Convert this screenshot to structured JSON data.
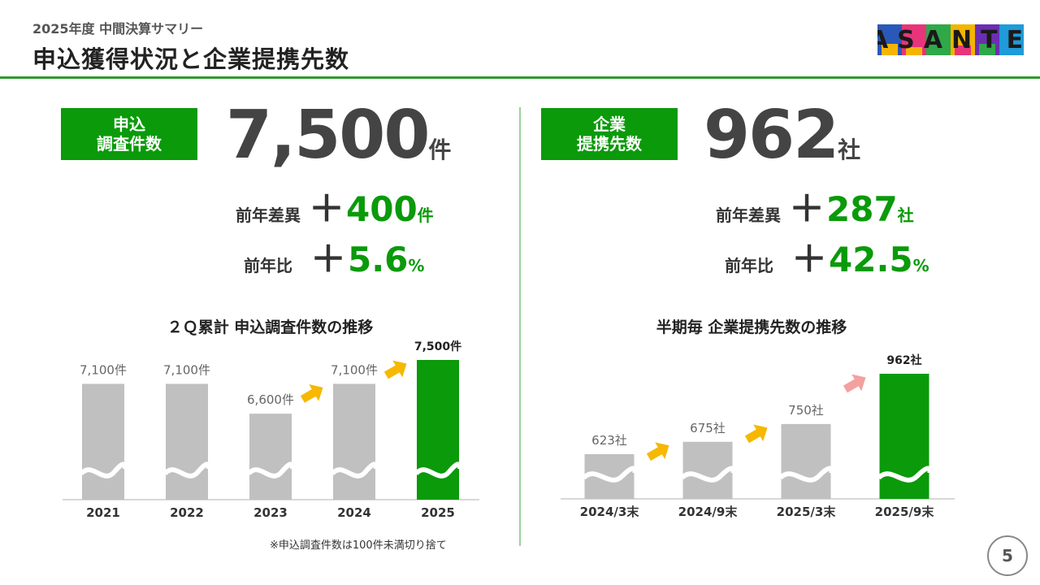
{
  "header": {
    "subtitle": "2025年度 中間決算サマリー",
    "title": "申込獲得状況と企業提携先数",
    "logo_text": "ASANTE",
    "rule_color": "#2e9b2e"
  },
  "left_kpi": {
    "badge_line1": "申込",
    "badge_line2": "調査件数",
    "value": "7,500",
    "unit": "件",
    "diff_label": "前年差異",
    "diff_sign": "＋",
    "diff_value": "400",
    "diff_unit": "件",
    "ratio_label": "前年比",
    "ratio_sign": "＋",
    "ratio_value": "5.6",
    "ratio_unit": "%"
  },
  "right_kpi": {
    "badge_line1": "企業",
    "badge_line2": "提携先数",
    "value": "962",
    "unit": "社",
    "diff_label": "前年差異",
    "diff_sign": "＋",
    "diff_value": "287",
    "diff_unit": "社",
    "ratio_label": "前年比",
    "ratio_sign": "＋",
    "ratio_value": "42.5",
    "ratio_unit": "%"
  },
  "chart_data": [
    {
      "type": "bar",
      "title": "２Ｑ累計 申込調査件数の推移",
      "categories": [
        "2021",
        "2022",
        "2023",
        "2024",
        "2025"
      ],
      "values": [
        7100,
        7100,
        6600,
        7100,
        7500
      ],
      "value_labels": [
        "7,100件",
        "7,100件",
        "6,600件",
        "7,100件",
        "7,500件"
      ],
      "highlight_index": 4,
      "axis_break": true,
      "arrows_after": [
        2,
        3
      ],
      "colors": {
        "bar": "#c0c0c0",
        "highlight": "#0a9a0a",
        "arrow": "#f6b800"
      }
    },
    {
      "type": "bar",
      "title": "半期毎 企業提携先数の推移",
      "categories": [
        "2024/3末",
        "2024/9末",
        "2025/3末",
        "2025/9末"
      ],
      "values": [
        623,
        675,
        750,
        962
      ],
      "value_labels": [
        "623社",
        "675社",
        "750社",
        "962社"
      ],
      "highlight_index": 3,
      "axis_break": true,
      "arrows_after": [
        0,
        1,
        2
      ],
      "colors": {
        "bar": "#c0c0c0",
        "highlight": "#0a9a0a",
        "arrow": "#f6b800",
        "arrow_emphasis": "#f4a0a0"
      }
    }
  ],
  "footnote": "※申込調査件数は100件未満切り捨て",
  "page_number": "5"
}
